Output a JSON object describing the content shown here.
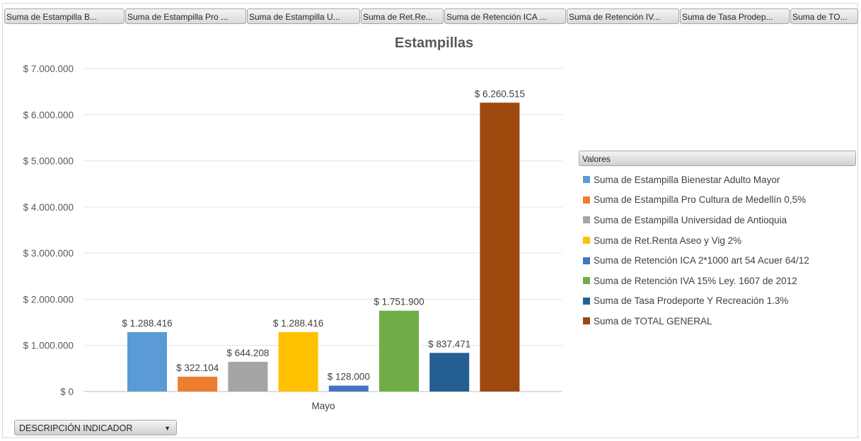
{
  "field_buttons": [
    "Suma de Estampilla B...",
    "Suma de Estampilla Pro ...",
    "Suma de Estampilla U...",
    "Suma de Ret.Re...",
    "Suma de Retención ICA ...",
    "Suma de Retención IV...",
    "Suma de Tasa Prodep...",
    "Suma de TO..."
  ],
  "legend_header": "Valores",
  "dropdown": {
    "label": "DESCRIPCIÓN INDICADOR",
    "icon": "chevron-down-icon"
  },
  "chart_data": {
    "type": "bar",
    "title": "Estampillas",
    "xlabel": "",
    "ylabel": "",
    "categories": [
      "Mayo"
    ],
    "ylim": [
      0,
      7000000
    ],
    "yticks": [
      0,
      1000000,
      2000000,
      3000000,
      4000000,
      5000000,
      6000000,
      7000000
    ],
    "ytick_labels": [
      "$ 0",
      "$ 1.000.000",
      "$ 2.000.000",
      "$ 3.000.000",
      "$ 4.000.000",
      "$ 5.000.000",
      "$ 6.000.000",
      "$ 7.000.000"
    ],
    "grid": true,
    "legend_position": "right",
    "series": [
      {
        "name": "Suma de Estampilla Bienestar Adulto Mayor",
        "values": [
          1288416
        ],
        "label": "$ 1.288.416",
        "color": "#5b9bd5"
      },
      {
        "name": "Suma de Estampilla Pro Cultura de Medellín 0,5%",
        "values": [
          322104
        ],
        "label": "$ 322.104",
        "color": "#ed7d31"
      },
      {
        "name": "Suma de Estampilla Universidad de Antioquia",
        "values": [
          644208
        ],
        "label": "$ 644.208",
        "color": "#a5a5a5"
      },
      {
        "name": "Suma de Ret.Renta Aseo y Vig 2%",
        "values": [
          1288416
        ],
        "label": "$ 1.288.416",
        "color": "#ffc000"
      },
      {
        "name": "Suma de Retención ICA 2*1000 art 54 Acuer 64/12",
        "values": [
          128000
        ],
        "label": "$ 128.000",
        "color": "#4472c4"
      },
      {
        "name": "Suma de Retención IVA 15% Ley. 1607 de 2012",
        "values": [
          1751900
        ],
        "label": "$ 1.751.900",
        "color": "#70ad47"
      },
      {
        "name": "Suma de Tasa Prodeporte Y Recreación 1.3%",
        "values": [
          837471
        ],
        "label": "$ 837.471",
        "color": "#255e91"
      },
      {
        "name": "Suma de TOTAL GENERAL",
        "values": [
          6260515
        ],
        "label": "$ 6.260.515",
        "color": "#9e480e"
      }
    ]
  }
}
